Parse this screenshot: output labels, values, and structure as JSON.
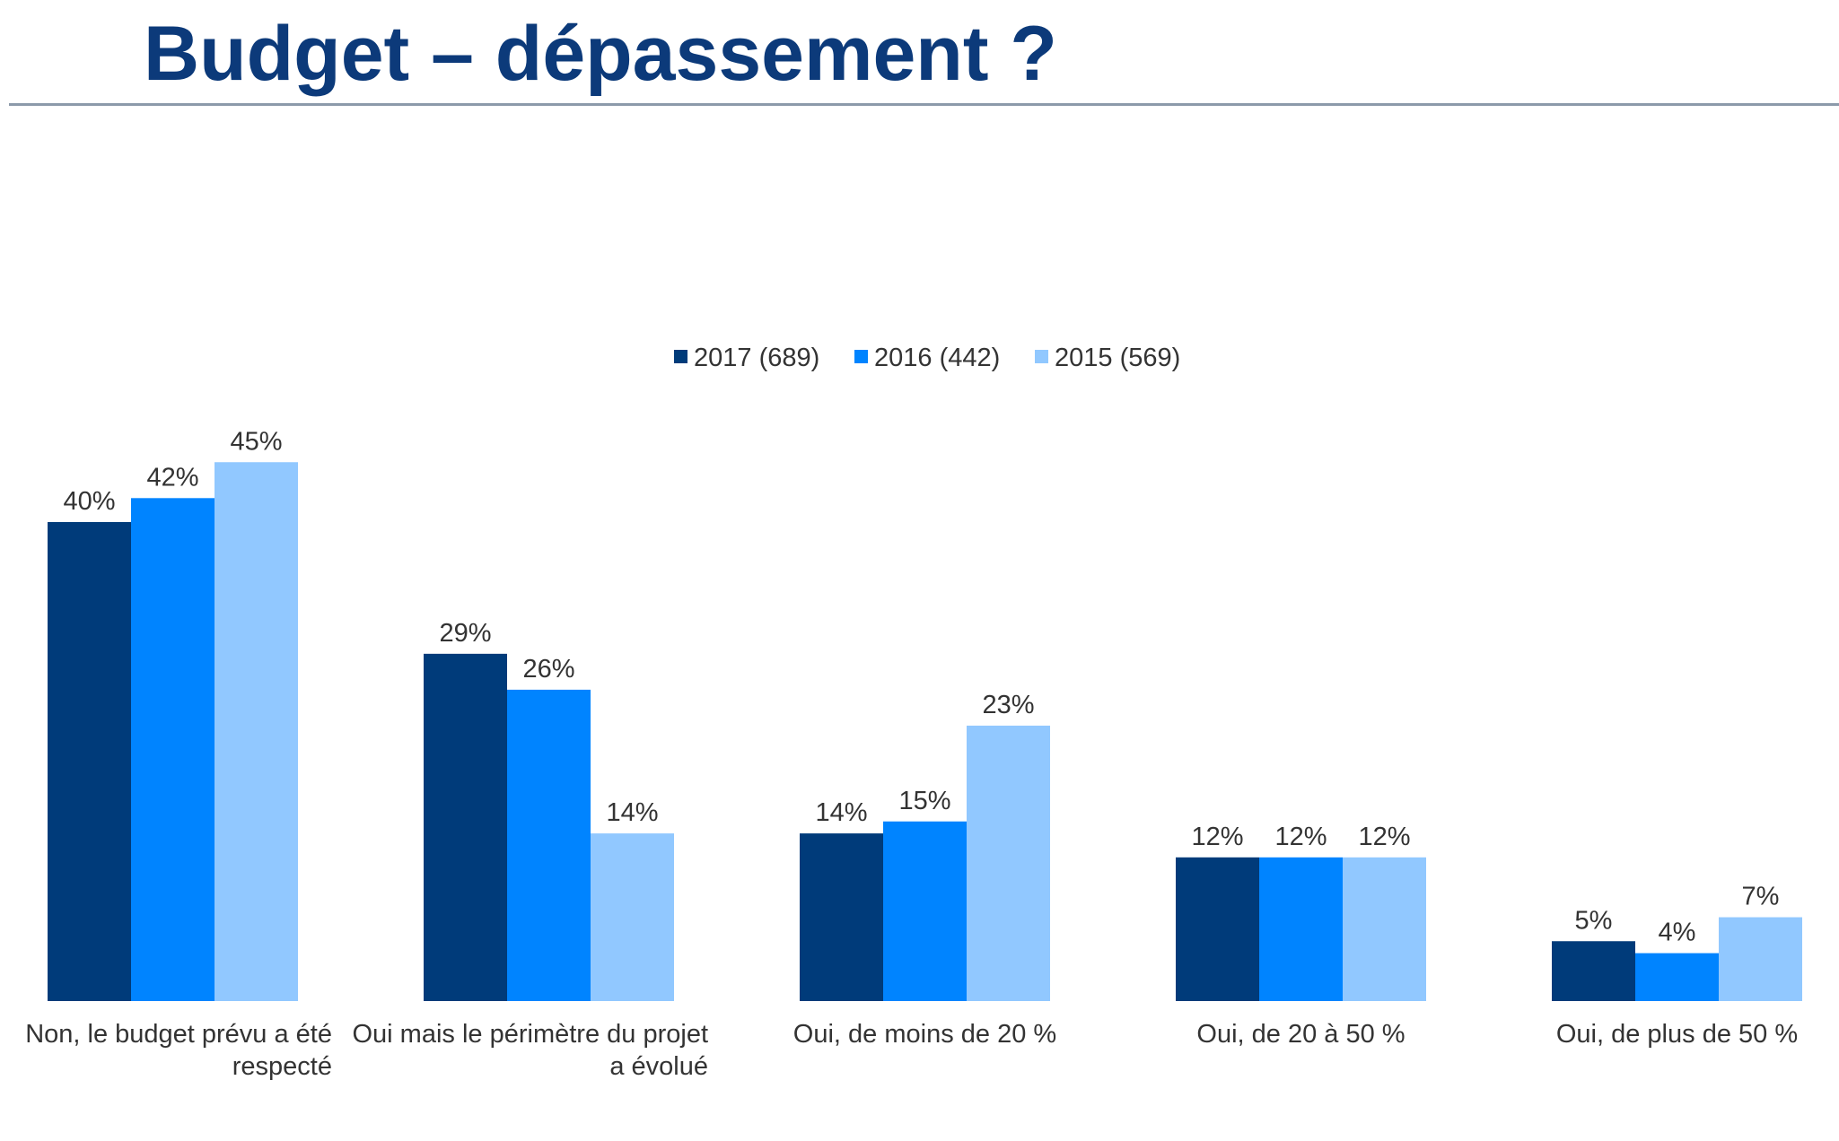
{
  "page": {
    "title": "Budget – dépassement ?"
  },
  "chart_data": {
    "type": "bar",
    "title": "",
    "xlabel": "",
    "ylabel": "",
    "ylim": [
      0,
      50
    ],
    "grid": false,
    "legend_position": "top-center",
    "value_suffix": "%",
    "categories": [
      [
        "Non, le budget prévu a été",
        "respecté"
      ],
      [
        "Oui mais le périmètre du projet",
        "a évolué"
      ],
      [
        "Oui, de moins de 20 %"
      ],
      [
        "Oui, de 20 à 50 %"
      ],
      [
        "Oui, de plus de 50 %"
      ]
    ],
    "series": [
      {
        "name": "2017 (689)",
        "color": "#003b7a",
        "values": [
          40,
          29,
          14,
          12,
          5
        ]
      },
      {
        "name": "2016 (442)",
        "color": "#0084ff",
        "values": [
          42,
          26,
          15,
          12,
          4
        ]
      },
      {
        "name": "2015 (569)",
        "color": "#91c8ff",
        "values": [
          45,
          14,
          23,
          12,
          7
        ]
      }
    ],
    "colors": {
      "label_text": "#333333",
      "title_text": "#0c3a7a",
      "rule": "#8c9aaa"
    }
  }
}
